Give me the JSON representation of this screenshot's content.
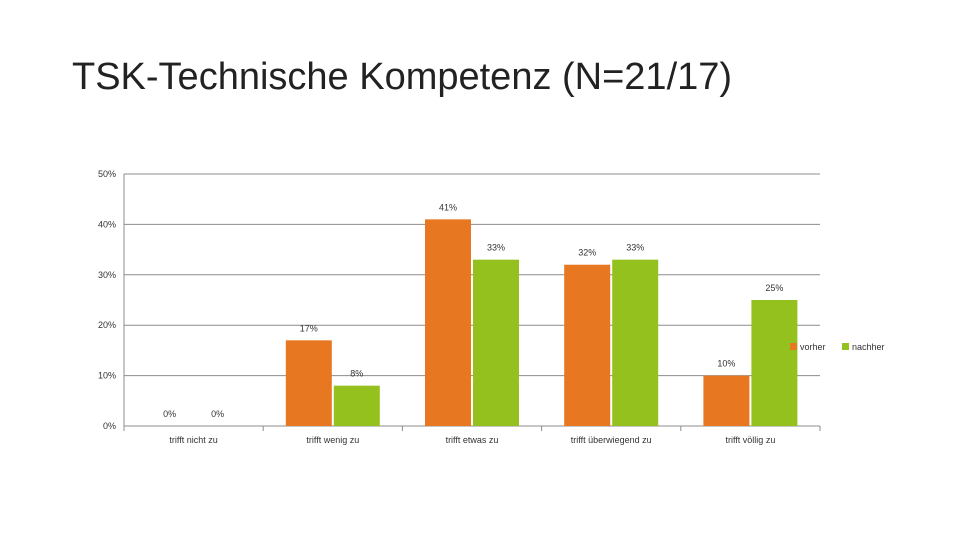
{
  "title": "TSK-Technische Kompetenz (N=21/17)",
  "chart_data": {
    "type": "bar",
    "title": "TSK-Technische Kompetenz (N=21/17)",
    "xlabel": "",
    "ylabel": "",
    "ylim": [
      0,
      50
    ],
    "y_ticks": [
      0,
      10,
      20,
      30,
      40,
      50
    ],
    "y_tick_labels": [
      "0%",
      "10%",
      "20%",
      "30%",
      "40%",
      "50%"
    ],
    "grid": true,
    "legend_position": "right",
    "categories": [
      "trifft nicht zu",
      "trifft wenig zu",
      "trifft etwas zu",
      "trifft überwiegend zu",
      "trifft völlig zu"
    ],
    "series": [
      {
        "name": "vorher",
        "color": "#E87722",
        "values": [
          0,
          17,
          41,
          32,
          10
        ],
        "labels": [
          "0%",
          "17%",
          "41%",
          "32%",
          "10%"
        ]
      },
      {
        "name": "nachher",
        "color": "#95C11F",
        "values": [
          0,
          8,
          33,
          33,
          25
        ],
        "labels": [
          "0%",
          "8%",
          "33%",
          "33%",
          "25%"
        ]
      }
    ]
  }
}
